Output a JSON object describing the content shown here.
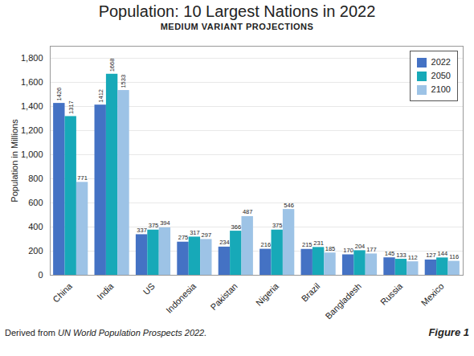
{
  "chart_data": {
    "type": "bar",
    "title": "Population: 10 Largest Nations in 2022",
    "subtitle": "MEDIUM VARIANT PROJECTIONS",
    "ylabel": "Population in Millions",
    "footnote": {
      "text": "Derived from ",
      "source": "UN World Population Prospects 2022."
    },
    "figure_label": "Figure 1",
    "categories": [
      "China",
      "India",
      "US",
      "Indonesia",
      "Pakistan",
      "Nigeria",
      "Brazil",
      "Bangladesh",
      "Russia",
      "Mexico"
    ],
    "series": [
      {
        "name": "2022",
        "color": "#4472c4",
        "values": [
          1426,
          1412,
          337,
          275,
          234,
          216,
          215,
          170,
          145,
          127
        ]
      },
      {
        "name": "2050",
        "color": "#17a9b8",
        "values": [
          1317,
          1668,
          375,
          317,
          366,
          375,
          231,
          204,
          133,
          144
        ]
      },
      {
        "name": "2100",
        "color": "#9dc3e6",
        "values": [
          771,
          1533,
          394,
          297,
          487,
          546,
          185,
          177,
          112,
          116
        ]
      }
    ],
    "ylim": [
      0,
      1900
    ],
    "yticks": [
      0,
      200,
      400,
      600,
      800,
      {
        "value": 1000,
        "label": "1,000"
      },
      {
        "value": 1200,
        "label": "1,200"
      },
      {
        "value": 1400,
        "label": "1,400"
      },
      {
        "value": 1600,
        "label": "1,600"
      },
      {
        "value": 1800,
        "label": "1,800"
      }
    ],
    "grid": true,
    "legend": "upper right",
    "data_labels": true
  }
}
